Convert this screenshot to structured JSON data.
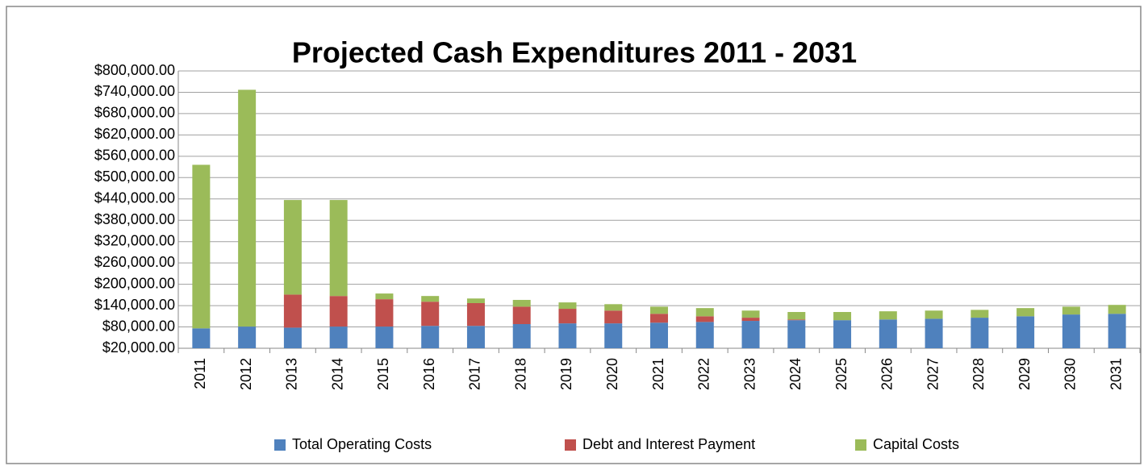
{
  "chart_data": {
    "type": "stacked_bar",
    "title": "Projected Cash Expenditures 2011 - 2031",
    "categories": [
      "2011",
      "2012",
      "2013",
      "2014",
      "2015",
      "2016",
      "2017",
      "2018",
      "2019",
      "2020",
      "2021",
      "2022",
      "2023",
      "2024",
      "2025",
      "2026",
      "2027",
      "2028",
      "2029",
      "2030",
      "2031"
    ],
    "series": [
      {
        "name": "Total Operating Costs",
        "color": "#4f81bd",
        "values": [
          56000,
          61000,
          58000,
          61000,
          61000,
          63000,
          63000,
          68000,
          70000,
          70000,
          72000,
          74000,
          77000,
          79000,
          79000,
          81000,
          83000,
          86000,
          90000,
          95000,
          97000
        ]
      },
      {
        "name": "Debt and Interest Payment",
        "color": "#c0504d",
        "values": [
          0,
          0,
          93000,
          86000,
          77000,
          68000,
          64000,
          49000,
          41000,
          36000,
          25000,
          16000,
          9000,
          2000,
          0,
          0,
          0,
          0,
          0,
          0,
          0
        ]
      },
      {
        "name": "Capital Costs",
        "color": "#9bbb59",
        "values": [
          460000,
          666000,
          266000,
          270000,
          16000,
          16000,
          13000,
          19000,
          18000,
          18000,
          20000,
          23000,
          20000,
          21000,
          23000,
          23000,
          23000,
          22000,
          23000,
          22000,
          25000
        ]
      }
    ],
    "ylim": [
      20000,
      800000
    ],
    "yticks": [
      {
        "value": 20000,
        "label": "$20,000.00"
      },
      {
        "value": 80000,
        "label": "$80,000.00"
      },
      {
        "value": 140000,
        "label": "$140,000.00"
      },
      {
        "value": 200000,
        "label": "$200,000.00"
      },
      {
        "value": 260000,
        "label": "$260,000.00"
      },
      {
        "value": 320000,
        "label": "$320,000.00"
      },
      {
        "value": 380000,
        "label": "$380,000.00"
      },
      {
        "value": 440000,
        "label": "$440,000.00"
      },
      {
        "value": 500000,
        "label": "$500,000.00"
      },
      {
        "value": 560000,
        "label": "$560,000.00"
      },
      {
        "value": 620000,
        "label": "$620,000.00"
      },
      {
        "value": 680000,
        "label": "$680,000.00"
      },
      {
        "value": 740000,
        "label": "$740,000.00"
      },
      {
        "value": 800000,
        "label": "$800,000.00"
      }
    ],
    "grid": true,
    "legend": "bottom"
  }
}
